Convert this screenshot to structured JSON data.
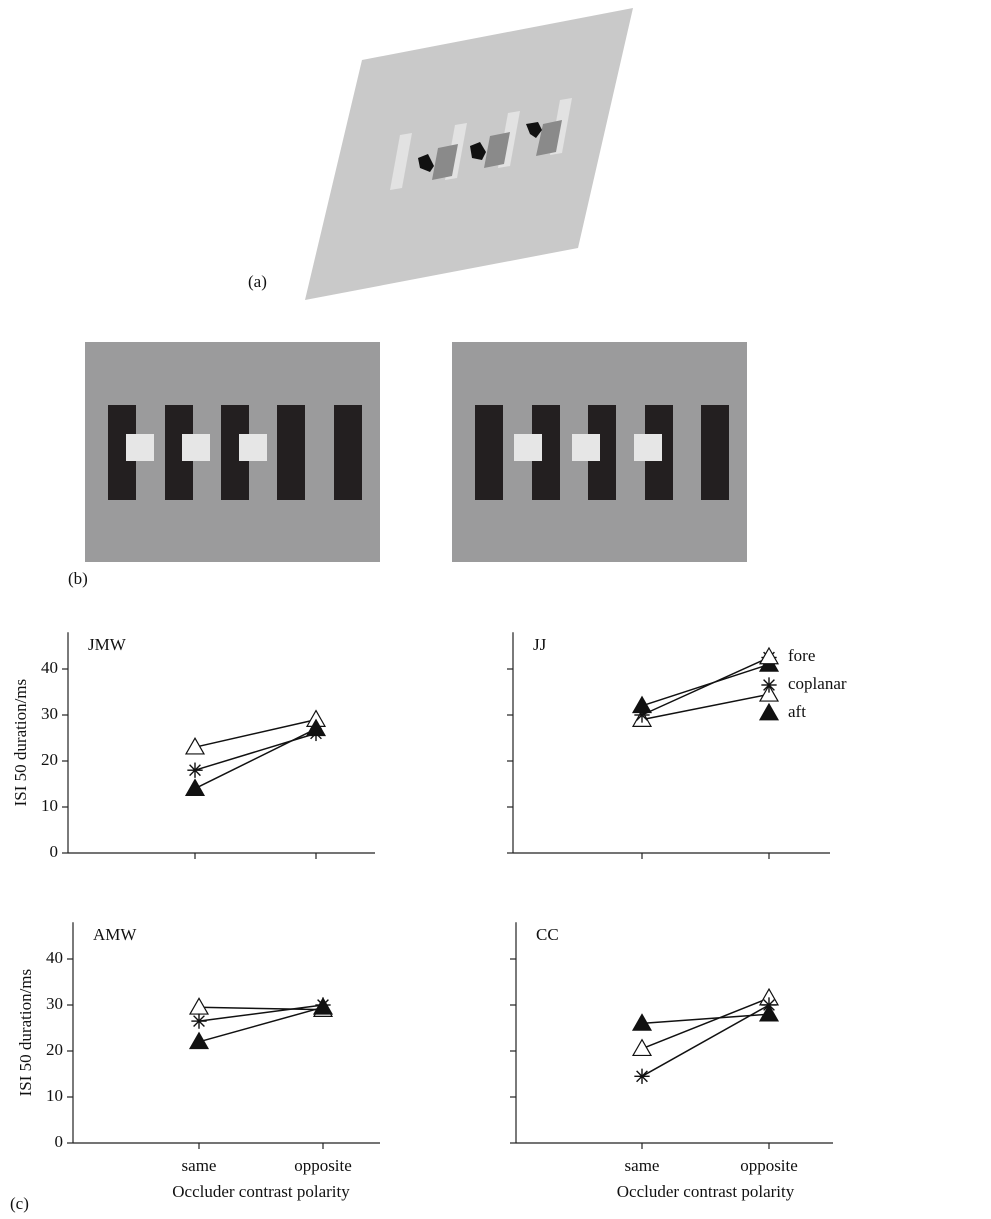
{
  "panels": {
    "a": "(a)",
    "b": "(b)",
    "c": "(c)"
  },
  "legend": [
    {
      "name": "fore",
      "marker": "open-triangle"
    },
    {
      "name": "coplanar",
      "marker": "asterisk"
    },
    {
      "name": "aft",
      "marker": "filled-triangle"
    }
  ],
  "chart_data": [
    {
      "type": "line",
      "title": "JMW",
      "categories": [
        null,
        null
      ],
      "ylabel": "ISI 50 duration/ms",
      "ylim": [
        0,
        48
      ],
      "yticks": [
        0,
        10,
        20,
        30,
        40
      ],
      "show_ytick_labels": true,
      "series": [
        {
          "marker": "open-triangle",
          "values": [
            23,
            29
          ]
        },
        {
          "marker": "asterisk",
          "values": [
            18,
            26
          ]
        },
        {
          "marker": "filled-triangle",
          "values": [
            14,
            27
          ]
        }
      ]
    },
    {
      "type": "line",
      "title": "JJ",
      "categories": [
        null,
        null
      ],
      "ylim": [
        0,
        48
      ],
      "yticks": [
        0,
        10,
        20,
        30,
        40
      ],
      "show_ytick_labels": false,
      "series": [
        {
          "marker": "open-triangle",
          "values": [
            29,
            34.5
          ]
        },
        {
          "marker": "asterisk",
          "values": [
            30,
            42.5
          ]
        },
        {
          "marker": "filled-triangle",
          "values": [
            32,
            41
          ]
        }
      ]
    },
    {
      "type": "line",
      "title": "AMW",
      "categories": [
        "same",
        "opposite"
      ],
      "ylabel": "ISI 50 duration/ms",
      "xlabel": "Occluder contrast polarity",
      "ylim": [
        0,
        48
      ],
      "yticks": [
        0,
        10,
        20,
        30,
        40
      ],
      "show_ytick_labels": true,
      "series": [
        {
          "marker": "open-triangle",
          "values": [
            29.5,
            29
          ]
        },
        {
          "marker": "asterisk",
          "values": [
            26.5,
            30
          ]
        },
        {
          "marker": "filled-triangle",
          "values": [
            22,
            29.5
          ]
        }
      ]
    },
    {
      "type": "line",
      "title": "CC",
      "categories": [
        "same",
        "opposite"
      ],
      "xlabel": "Occluder contrast polarity",
      "ylim": [
        0,
        48
      ],
      "yticks": [
        0,
        10,
        20,
        30,
        40
      ],
      "show_ytick_labels": false,
      "series": [
        {
          "marker": "open-triangle",
          "values": [
            20.5,
            31.5
          ]
        },
        {
          "marker": "asterisk",
          "values": [
            14.5,
            30
          ]
        },
        {
          "marker": "filled-triangle",
          "values": [
            26,
            28
          ]
        }
      ]
    }
  ]
}
